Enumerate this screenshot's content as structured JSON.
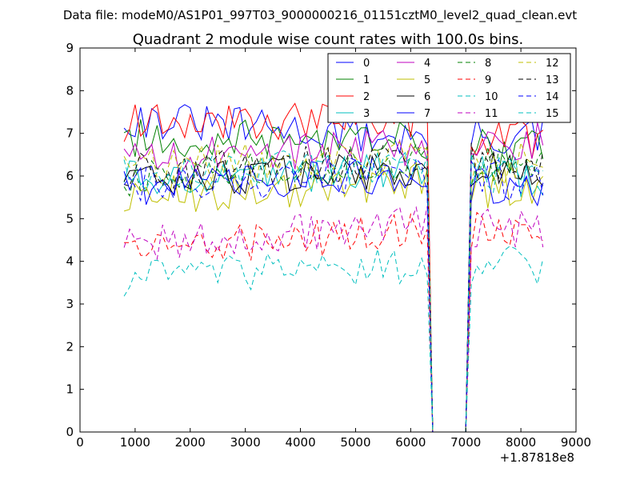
{
  "supertitle": "Data file: modeM0/AS1P01_997T03_9000000216_01151cztM0_level2_quad_clean.evt",
  "chart_data": {
    "type": "line",
    "title": "Quadrant 2 module wise count rates with 100.0s bins.",
    "xlabel": "",
    "ylabel": "",
    "x_offset_label": "+1.87818e8",
    "xlim": [
      0,
      9000
    ],
    "ylim": [
      0,
      9
    ],
    "xticks": [
      "0",
      "1000",
      "2000",
      "3000",
      "4000",
      "5000",
      "6000",
      "7000",
      "8000",
      "9000"
    ],
    "yticks": [
      "0",
      "1",
      "2",
      "3",
      "4",
      "5",
      "6",
      "7",
      "8",
      "9"
    ],
    "grid": false,
    "legend_position": "top-right",
    "x_start": 800,
    "x_step": 100,
    "gap": {
      "zero_from": 6400,
      "zero_to": 7000
    },
    "series": [
      {
        "name": "0",
        "color": "#0000ff",
        "dash": "solid",
        "pre_level": 7.35,
        "pre_trend": -0.5,
        "post_level": 6.9
      },
      {
        "name": "1",
        "color": "#008000",
        "dash": "solid",
        "pre_level": 6.9,
        "pre_trend": -0.1,
        "post_level": 6.6
      },
      {
        "name": "2",
        "color": "#ff0000",
        "dash": "solid",
        "pre_level": 7.25,
        "pre_trend": 0.1,
        "post_level": 6.9
      },
      {
        "name": "3",
        "color": "#00bfbf",
        "dash": "solid",
        "pre_level": 5.95,
        "pre_trend": 0.2,
        "post_level": 6.0
      },
      {
        "name": "4",
        "color": "#bf00bf",
        "dash": "solid",
        "pre_level": 6.4,
        "pre_trend": 0.3,
        "post_level": 6.8
      },
      {
        "name": "5",
        "color": "#bfbf00",
        "dash": "solid",
        "pre_level": 5.5,
        "pre_trend": 0.4,
        "post_level": 5.7
      },
      {
        "name": "6",
        "color": "#000000",
        "dash": "solid",
        "pre_level": 5.85,
        "pre_trend": 0.3,
        "post_level": 6.1
      },
      {
        "name": "7",
        "color": "#0000ff",
        "dash": "solid",
        "pre_level": 5.75,
        "pre_trend": 0.3,
        "post_level": 5.8
      },
      {
        "name": "8",
        "color": "#008000",
        "dash": "dashed",
        "pre_level": 5.95,
        "pre_trend": 0.4,
        "post_level": 6.2
      },
      {
        "name": "9",
        "color": "#ff0000",
        "dash": "dashed",
        "pre_level": 4.3,
        "pre_trend": 0.4,
        "post_level": 4.7
      },
      {
        "name": "10",
        "color": "#00bfbf",
        "dash": "dashed",
        "pre_level": 3.6,
        "pre_trend": 0.3,
        "post_level": 3.9
      },
      {
        "name": "11",
        "color": "#bf00bf",
        "dash": "dashed",
        "pre_level": 4.4,
        "pre_trend": 0.5,
        "post_level": 4.8
      },
      {
        "name": "12",
        "color": "#bfbf00",
        "dash": "dashed",
        "pre_level": 6.2,
        "pre_trend": 0.3,
        "post_level": 6.3
      },
      {
        "name": "13",
        "color": "#000000",
        "dash": "dashed",
        "pre_level": 6.1,
        "pre_trend": 0.3,
        "post_level": 6.3
      },
      {
        "name": "14",
        "color": "#0000ff",
        "dash": "dashed",
        "pre_level": 5.75,
        "pre_trend": 0.3,
        "post_level": 5.9
      },
      {
        "name": "15",
        "color": "#00bfbf",
        "dash": "dashed",
        "pre_level": 6.0,
        "pre_trend": 0.3,
        "post_level": 6.1
      }
    ]
  }
}
